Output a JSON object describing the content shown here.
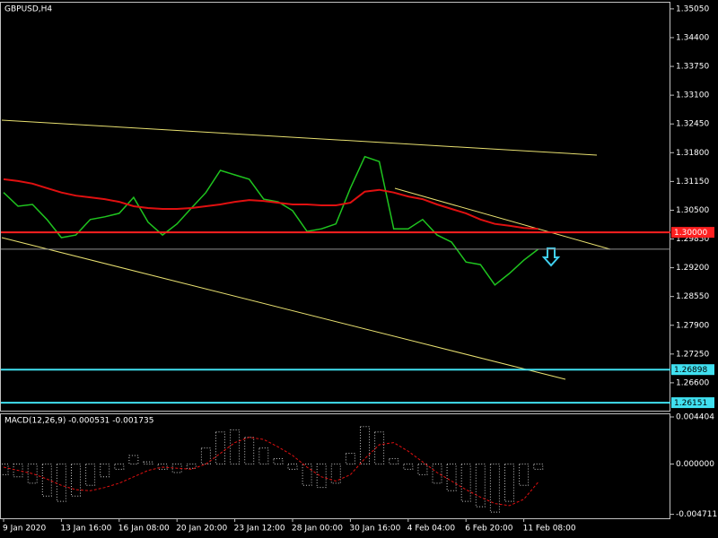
{
  "chart_data": [
    {
      "type": "line",
      "title": "GBPUSD,H4",
      "ylim": [
        1.2597,
        1.3521
      ],
      "yticks": [
        {
          "value": 1.3505,
          "label": "1.35050"
        },
        {
          "value": 1.344,
          "label": "1.34400"
        },
        {
          "value": 1.3375,
          "label": "1.33750"
        },
        {
          "value": 1.331,
          "label": "1.33100"
        },
        {
          "value": 1.3245,
          "label": "1.32450"
        },
        {
          "value": 1.318,
          "label": "1.31800"
        },
        {
          "value": 1.3115,
          "label": "1.31150"
        },
        {
          "value": 1.305,
          "label": "1.30500"
        },
        {
          "value": 1.2985,
          "label": "1.29850"
        },
        {
          "value": 1.292,
          "label": "1.29200"
        },
        {
          "value": 1.2855,
          "label": "1.28550"
        },
        {
          "value": 1.279,
          "label": "1.27900"
        },
        {
          "value": 1.2725,
          "label": "1.27250"
        },
        {
          "value": 1.266,
          "label": "1.26600"
        }
      ],
      "series": [
        {
          "name": "GBPUSD",
          "color": "#1fc41f",
          "values": [
            1.309,
            1.3059,
            1.3063,
            1.3029,
            1.2988,
            1.2994,
            1.3029,
            1.3035,
            1.3043,
            1.3079,
            1.3023,
            1.2994,
            1.3019,
            1.3055,
            1.309,
            1.314,
            1.313,
            1.312,
            1.3075,
            1.3069,
            1.3049,
            1.3002,
            1.3008,
            1.3019,
            1.31,
            1.3171,
            1.316,
            1.3008,
            1.3008,
            1.3029,
            1.2994,
            1.2978,
            1.2933,
            1.2927,
            1.2881,
            1.2907,
            1.2937,
            1.2962
          ]
        },
        {
          "name": "MA",
          "color": "#e01010",
          "values": [
            1.312,
            1.3116,
            1.311,
            1.31,
            1.309,
            1.3083,
            1.3079,
            1.3075,
            1.3069,
            1.3059,
            1.3055,
            1.3053,
            1.3053,
            1.3055,
            1.3059,
            1.3063,
            1.3069,
            1.3073,
            1.3071,
            1.3067,
            1.3063,
            1.3063,
            1.3061,
            1.3061,
            1.3067,
            1.3092,
            1.3096,
            1.309,
            1.3081,
            1.3075,
            1.3063,
            1.3053,
            1.3043,
            1.3029,
            1.3019,
            1.3015,
            1.301,
            1.3008
          ]
        }
      ],
      "levels": [
        {
          "value": 1.3,
          "label": "1.30000",
          "color": "#ff2020"
        },
        {
          "value": 1.26898,
          "label": "1.26898",
          "color": "#40e0f0"
        },
        {
          "value": 1.26151,
          "label": "1.26151",
          "color": "#40e0f0"
        }
      ]
    },
    {
      "type": "bar",
      "title": "MACD(12,26,9) -0.000531 -0.001735",
      "categories": [
        "9 Jan 2020",
        null,
        null,
        null,
        "13 Jan 16:00",
        null,
        null,
        null,
        "16 Jan 08:00",
        null,
        null,
        null,
        "20 Jan 20:00",
        null,
        null,
        null,
        "23 Jan 12:00",
        null,
        null,
        null,
        "28 Jan 00:00",
        null,
        null,
        null,
        "30 Jan 16:00",
        null,
        null,
        null,
        "4 Feb 04:00",
        null,
        null,
        null,
        "6 Feb 20:00",
        null,
        null,
        null,
        "11 Feb 08:00",
        null
      ],
      "ylim": [
        -0.00508,
        0.00474
      ],
      "yticks": [
        0.004404,
        {
          "value": 0,
          "label": "0.000000"
        },
        -0.004711
      ],
      "series": [
        {
          "name": "MACD",
          "color": "#c8c8c8",
          "values": [
            -0.001,
            -0.0012,
            -0.0018,
            -0.003,
            -0.0035,
            -0.003,
            -0.002,
            -0.0012,
            -0.0005,
            0.0008,
            0.0002,
            -0.0005,
            -0.0008,
            -0.0004,
            0.0015,
            0.003,
            0.0032,
            0.0025,
            0.0015,
            0.0005,
            -0.0005,
            -0.002,
            -0.0022,
            -0.0018,
            0.001,
            0.0035,
            0.003,
            0.0005,
            -0.0005,
            -0.001,
            -0.0018,
            -0.0025,
            -0.0035,
            -0.004,
            -0.0045,
            -0.0035,
            -0.002,
            -0.0005
          ]
        },
        {
          "name": "Signal",
          "color": "#e01010",
          "values": [
            -0.0003,
            -0.0006,
            -0.0009,
            -0.0014,
            -0.002,
            -0.0024,
            -0.0025,
            -0.0022,
            -0.0018,
            -0.0012,
            -0.0006,
            -0.0003,
            -0.0004,
            -0.0005,
            0,
            0.001,
            0.002,
            0.0025,
            0.0023,
            0.0016,
            0.0008,
            -0.0003,
            -0.0012,
            -0.0016,
            -0.001,
            0.0005,
            0.0018,
            0.002,
            0.0012,
            0.0002,
            -0.0008,
            -0.0016,
            -0.0024,
            -0.0031,
            -0.0037,
            -0.0039,
            -0.0033,
            -0.0017
          ]
        }
      ]
    }
  ]
}
